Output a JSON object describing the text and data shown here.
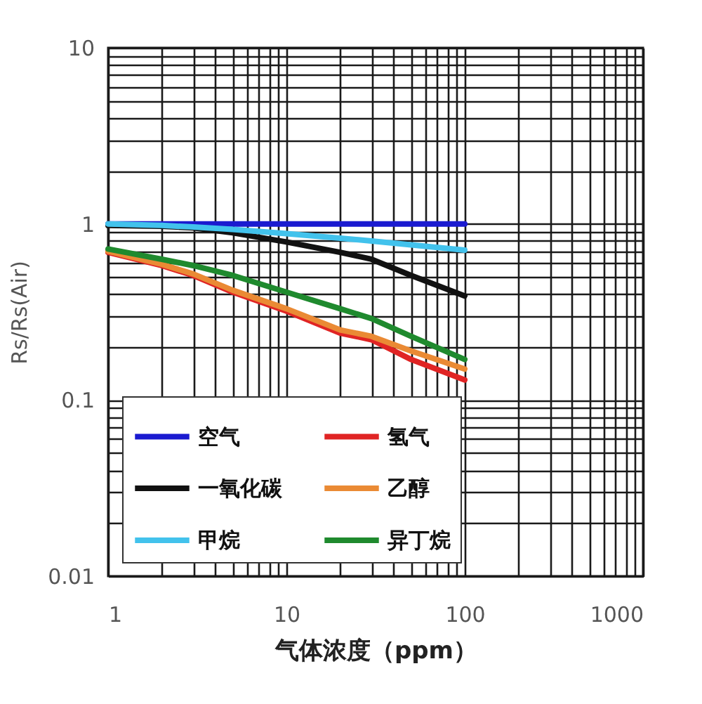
{
  "chart_data": {
    "type": "line",
    "xlabel": "气体浓度（ppm）",
    "ylabel": "Rs/Rs(Air)",
    "x": [
      1,
      2,
      3,
      5,
      10,
      20,
      30,
      50,
      100
    ],
    "series": [
      {
        "name": "空气",
        "color": "#1a1ad0",
        "values": [
          1,
          1,
          1,
          1,
          1,
          1,
          1,
          1,
          1
        ]
      },
      {
        "name": "氢气",
        "color": "#e02424",
        "values": [
          0.69,
          0.58,
          0.51,
          0.41,
          0.32,
          0.24,
          0.22,
          0.17,
          0.13
        ]
      },
      {
        "name": "一氧化碳",
        "color": "#111111",
        "values": [
          0.98,
          0.97,
          0.95,
          0.89,
          0.79,
          0.69,
          0.63,
          0.51,
          0.39
        ]
      },
      {
        "name": "乙醇",
        "color": "#ea8a34",
        "values": [
          0.7,
          0.59,
          0.52,
          0.42,
          0.33,
          0.25,
          0.23,
          0.19,
          0.15
        ]
      },
      {
        "name": "甲烷",
        "color": "#42c2ec",
        "values": [
          1,
          0.98,
          0.96,
          0.93,
          0.88,
          0.83,
          0.8,
          0.76,
          0.71
        ]
      },
      {
        "name": "异丁烷",
        "color": "#1f8a2e",
        "values": [
          0.72,
          0.63,
          0.58,
          0.51,
          0.41,
          0.33,
          0.29,
          0.23,
          0.17
        ]
      }
    ],
    "log": "xy",
    "xlim": [
      1,
      1000
    ],
    "ylim": [
      0.01,
      10
    ],
    "xticks": [
      1,
      {
        "value": 2,
        "label": null
      },
      {
        "value": 3,
        "label": null
      },
      {
        "value": 4,
        "label": null
      },
      {
        "value": 5,
        "label": null
      },
      {
        "value": 6,
        "label": null
      },
      {
        "value": 7,
        "label": null
      },
      {
        "value": 8,
        "label": null
      },
      {
        "value": 9,
        "label": null
      },
      10,
      {
        "value": 20,
        "label": null
      },
      {
        "value": 30,
        "label": null
      },
      {
        "value": 40,
        "label": null
      },
      {
        "value": 50,
        "label": null
      },
      {
        "value": 60,
        "label": null
      },
      {
        "value": 70,
        "label": null
      },
      {
        "value": 80,
        "label": null
      },
      {
        "value": 90,
        "label": null
      },
      100,
      {
        "value": 200,
        "label": null
      },
      {
        "value": 300,
        "label": null
      },
      {
        "value": 400,
        "label": null
      },
      {
        "value": 500,
        "label": null
      },
      {
        "value": 600,
        "label": null
      },
      {
        "value": 700,
        "label": null
      },
      {
        "value": 800,
        "label": null
      },
      {
        "value": 900,
        "label": null
      },
      1000
    ],
    "yticks": [
      0.01,
      {
        "value": 0.02,
        "label": null
      },
      {
        "value": 0.03,
        "label": null
      },
      {
        "value": 0.04,
        "label": null
      },
      {
        "value": 0.05,
        "label": null
      },
      {
        "value": 0.06,
        "label": null
      },
      {
        "value": 0.07,
        "label": null
      },
      {
        "value": 0.08,
        "label": null
      },
      {
        "value": 0.09,
        "label": null
      },
      0.1,
      {
        "value": 0.2,
        "label": null
      },
      {
        "value": 0.3,
        "label": null
      },
      {
        "value": 0.4,
        "label": null
      },
      {
        "value": 0.5,
        "label": null
      },
      {
        "value": 0.6,
        "label": null
      },
      {
        "value": 0.7,
        "label": null
      },
      {
        "value": 0.8,
        "label": null
      },
      {
        "value": 0.9,
        "label": null
      },
      1,
      {
        "value": 2,
        "label": null
      },
      {
        "value": 3,
        "label": null
      },
      {
        "value": 4,
        "label": null
      },
      {
        "value": 5,
        "label": null
      },
      {
        "value": 6,
        "label": null
      },
      {
        "value": 7,
        "label": null
      },
      {
        "value": 8,
        "label": null
      },
      {
        "value": 9,
        "label": null
      },
      10
    ],
    "grid": true,
    "legend": "bottom left"
  }
}
